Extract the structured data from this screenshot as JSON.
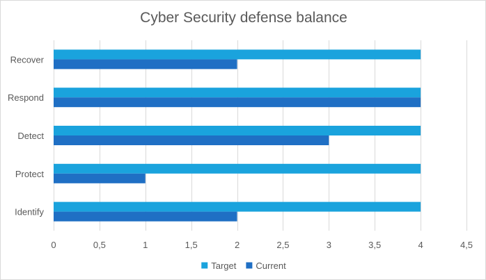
{
  "chart_data": {
    "type": "bar",
    "orientation": "horizontal",
    "title": "Cyber Security defense balance",
    "categories": [
      "Recover",
      "Respond",
      "Detect",
      "Protect",
      "Identify"
    ],
    "series": [
      {
        "name": "Target",
        "values": [
          4,
          4,
          4,
          4,
          4
        ],
        "color": "#1aa3dd"
      },
      {
        "name": "Current",
        "values": [
          2,
          4,
          3,
          1,
          2
        ],
        "color": "#1f6fc4"
      }
    ],
    "xlim": [
      0,
      4.5
    ],
    "x_ticks": [
      "0",
      "0,5",
      "1",
      "1,5",
      "2",
      "2,5",
      "3",
      "3,5",
      "4",
      "4,5"
    ],
    "grid": "vertical",
    "legend_position": "bottom"
  }
}
